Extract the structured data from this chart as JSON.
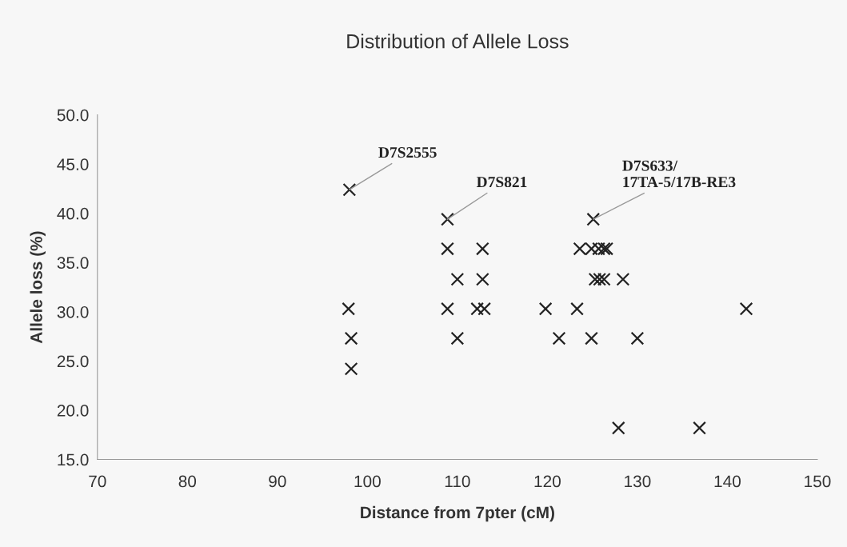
{
  "chart_data": {
    "type": "scatter",
    "title": "Distribution of Allele Loss",
    "xlabel": "Distance from 7pter (cM)",
    "ylabel": "Allele loss (%)",
    "x": [
      98.0,
      97.9,
      98.2,
      98.2,
      108.9,
      108.9,
      108.9,
      110.0,
      110.0,
      112.8,
      112.8,
      112.2,
      113.0,
      119.8,
      123.3,
      121.3,
      124.9,
      130.0,
      125.1,
      123.6,
      124.9,
      125.7,
      126.3,
      126.6,
      125.3,
      125.8,
      126.3,
      128.4,
      142.1,
      127.9,
      136.9
    ],
    "values": [
      42.4,
      30.3,
      27.3,
      24.2,
      39.4,
      36.4,
      30.3,
      33.3,
      27.3,
      36.4,
      33.3,
      30.3,
      30.3,
      30.3,
      30.3,
      27.3,
      27.3,
      27.3,
      39.4,
      36.4,
      36.4,
      36.4,
      36.4,
      36.4,
      33.3,
      33.3,
      33.3,
      33.3,
      30.3,
      18.2,
      18.2
    ],
    "color": "#222222",
    "marker": "cross",
    "xlim": [
      70,
      150
    ],
    "xticks": [
      70,
      80,
      90,
      100,
      110,
      120,
      130,
      140,
      150
    ],
    "ylim": [
      15,
      50
    ],
    "yticks": [
      {
        "value": 15,
        "label": "15.0"
      },
      {
        "value": 20,
        "label": "20.0"
      },
      {
        "value": 25,
        "label": "25.0"
      },
      {
        "value": 30,
        "label": "30.0"
      },
      {
        "value": 35,
        "label": "35.0"
      },
      {
        "value": 40,
        "label": "40.0"
      },
      {
        "value": 45,
        "label": "45.0"
      },
      {
        "value": 50,
        "label": "50.0"
      }
    ],
    "grid": false,
    "annotations": [
      {
        "text": "D7S2555",
        "x": 98.0,
        "y": 42.4
      },
      {
        "text": "D7S821",
        "x": 108.9,
        "y": 39.4
      },
      {
        "text": "D7S633/\n17TA-5/17B-RE3",
        "x": 125.1,
        "y": 39.4
      }
    ]
  }
}
